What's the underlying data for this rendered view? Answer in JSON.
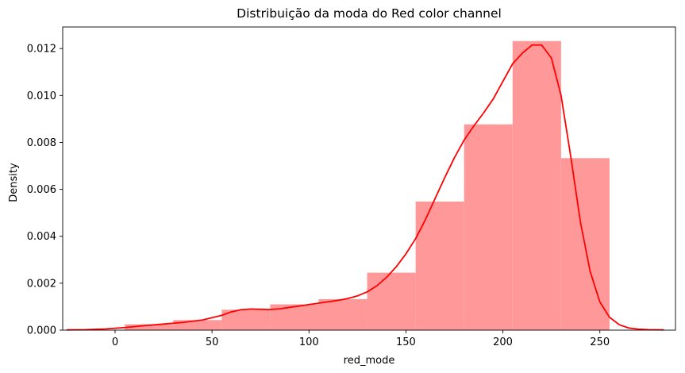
{
  "chart_data": {
    "type": "bar",
    "title": "Distribuição da moda do Red color channel",
    "xlabel": "red_mode",
    "ylabel": "Density",
    "xlim": [
      -27,
      289
    ],
    "ylim": [
      0,
      0.01292
    ],
    "xticks": [
      0,
      50,
      100,
      150,
      200,
      250
    ],
    "yticks": [
      0.0,
      0.002,
      0.004,
      0.006,
      0.008,
      0.01,
      0.012
    ],
    "ytick_labels": [
      "0.000",
      "0.002",
      "0.004",
      "0.006",
      "0.008",
      "0.010",
      "0.012"
    ],
    "grid": false,
    "histogram": {
      "bin_edges": [
        5,
        30,
        55,
        80,
        105,
        130,
        155,
        180,
        205,
        230,
        255
      ],
      "values": [
        0.00025,
        0.00043,
        0.00087,
        0.0011,
        0.00132,
        0.00245,
        0.00548,
        0.00877,
        0.01232,
        0.00733
      ],
      "color": "#ff9999"
    },
    "kde": {
      "color": "#ff0000",
      "x": [
        -25,
        -15,
        -5,
        5,
        15,
        25,
        35,
        45,
        55,
        60,
        65,
        70,
        75,
        80,
        85,
        90,
        95,
        100,
        105,
        110,
        115,
        120,
        125,
        130,
        135,
        140,
        145,
        150,
        155,
        160,
        165,
        170,
        175,
        180,
        185,
        190,
        195,
        200,
        205,
        210,
        215,
        220,
        225,
        230,
        235,
        240,
        245,
        250,
        255,
        260,
        265,
        270,
        275,
        283
      ],
      "y": [
        1e-05,
        2e-05,
        5e-05,
        0.00011,
        0.00019,
        0.00026,
        0.00033,
        0.00043,
        0.00063,
        0.00078,
        0.00087,
        0.0009,
        0.00089,
        0.00088,
        0.00091,
        0.00097,
        0.00103,
        0.00109,
        0.00115,
        0.00121,
        0.00127,
        0.00135,
        0.00146,
        0.00163,
        0.00189,
        0.00225,
        0.0027,
        0.00325,
        0.0039,
        0.0047,
        0.0056,
        0.0065,
        0.00735,
        0.0081,
        0.0087,
        0.00925,
        0.00985,
        0.0106,
        0.01135,
        0.0118,
        0.01215,
        0.01215,
        0.0116,
        0.01,
        0.0074,
        0.0046,
        0.0025,
        0.0012,
        0.00055,
        0.00023,
        9e-05,
        4e-05,
        2e-05,
        1e-05
      ]
    }
  }
}
